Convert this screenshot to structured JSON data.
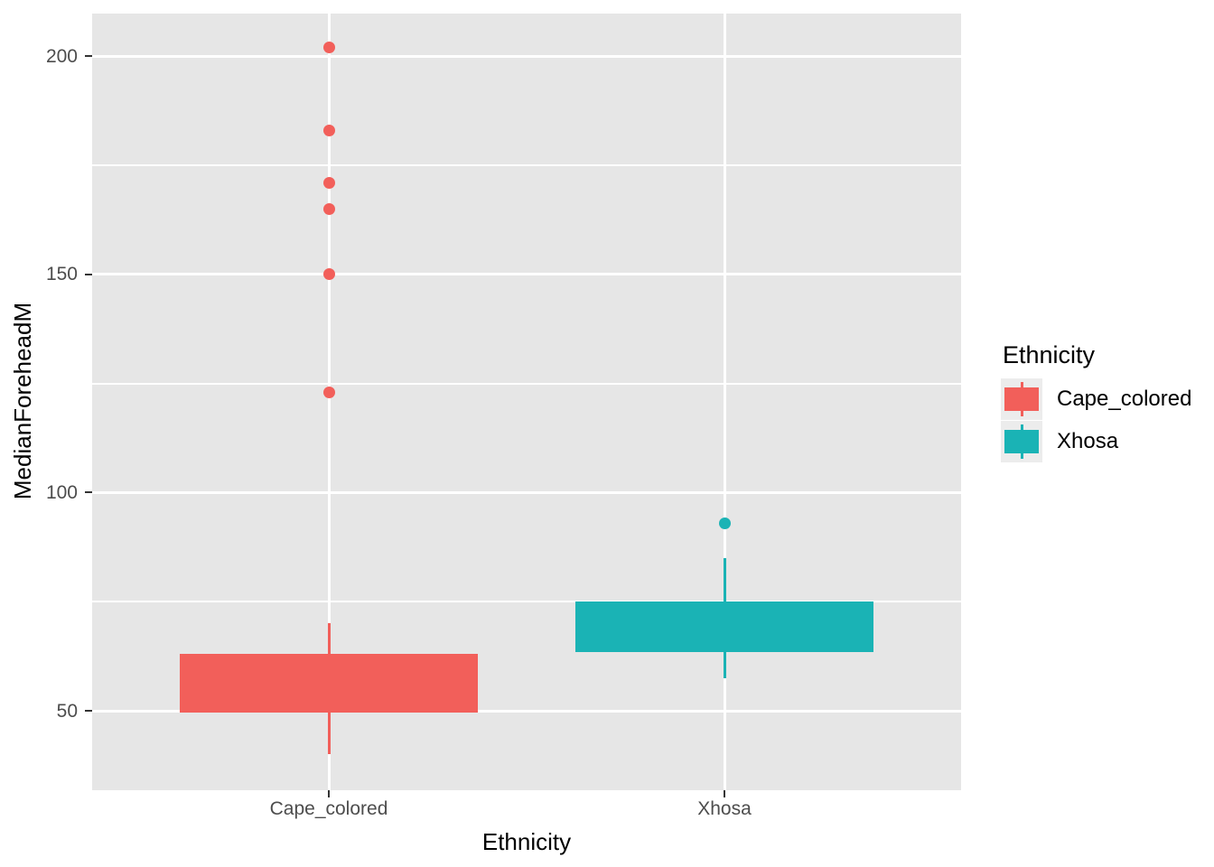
{
  "figure": {
    "background": "#FFFFFF",
    "panel_background": "#E6E6E6",
    "gridline_color": "#FFFFFF",
    "tick_mark_color": "#333333",
    "tick_label_color": "#4D4D4D",
    "axis_title_color": "#000000"
  },
  "chart_data": {
    "type": "boxplot",
    "title": "",
    "xlabel": "Ethnicity",
    "ylabel": "MedianForeheadM",
    "categories": [
      "Cape_colored",
      "Xhosa"
    ],
    "y_axis": {
      "tick_labels": [
        "200",
        "150",
        "100",
        "50"
      ],
      "ticks": [
        200,
        150,
        100,
        50
      ],
      "minor_gridlines": [
        175,
        125,
        75
      ],
      "ylim": [
        31.8,
        209.8
      ],
      "grid": true
    },
    "legend": {
      "title": "Ethnicity",
      "position": "right",
      "entries": [
        {
          "label": "Cape_colored",
          "color": "#F25F5A"
        },
        {
          "label": "Xhosa",
          "color": "#1AB3B5"
        }
      ]
    },
    "series": [
      {
        "name": "Cape_colored",
        "color": "#F25F5A",
        "whisker_low": 40,
        "q1": 49.5,
        "q3": 63,
        "whisker_high": 70,
        "median_visible": false,
        "outliers": [
          202,
          183,
          171,
          165,
          150,
          123
        ]
      },
      {
        "name": "Xhosa",
        "color": "#1AB3B5",
        "whisker_low": 57.5,
        "q1": 63.5,
        "q3": 75,
        "whisker_high": 85,
        "median_visible": false,
        "outliers": [
          93
        ]
      }
    ]
  }
}
